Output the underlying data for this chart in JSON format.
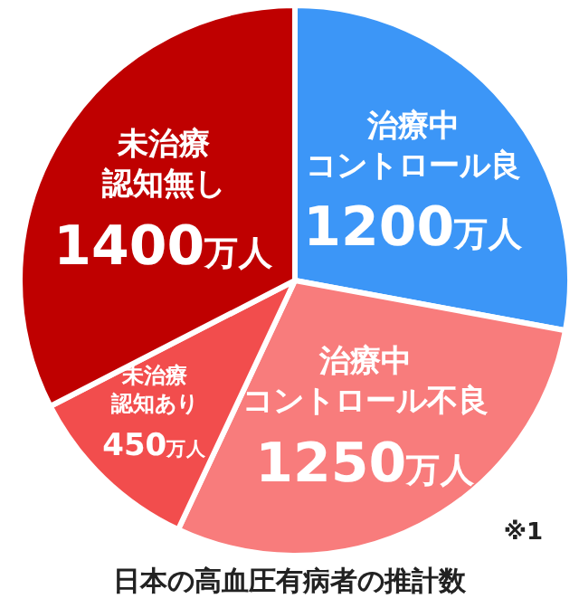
{
  "chart_data": {
    "type": "pie",
    "title": "日本の高血圧有病者の推計数",
    "categories": [
      "治療中コントロール良",
      "治療中コントロール不良",
      "未治療認知あり",
      "未治療認知無し"
    ],
    "values": [
      1200,
      1250,
      450,
      1400
    ],
    "value_labels": [
      "1200万人",
      "1250万人",
      "450万人",
      "1400万人"
    ],
    "colors": [
      "#3c96f7",
      "#f87c7c",
      "#f24d4d",
      "#bf0000"
    ],
    "annotations": [
      "※1"
    ]
  }
}
